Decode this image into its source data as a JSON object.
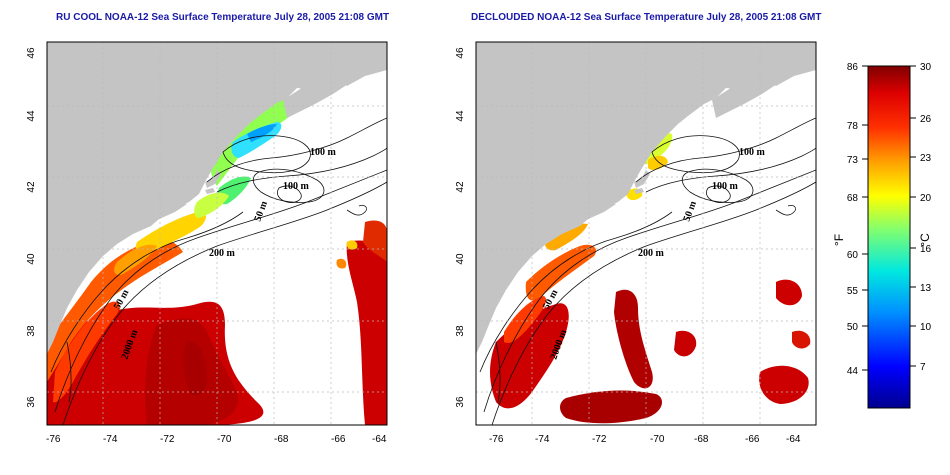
{
  "maps": [
    {
      "title": "RU COOL NOAA-12 Sea Surface Temperature July 28, 2005 21:08 GMT",
      "contour_labels": [
        "100 m",
        "100 m",
        "50 m",
        "200 m",
        "50 m",
        "2000 m"
      ]
    },
    {
      "title": "DECLOUDED NOAA-12 Sea Surface Temperature July 28, 2005 21:08 GMT",
      "contour_labels": [
        "100 m",
        "100 m",
        "50 m",
        "200 m",
        "50 m",
        "2000 m"
      ]
    }
  ],
  "axes": {
    "x_ticks": [
      "-76",
      "-74",
      "-72",
      "-70",
      "-68",
      "-66",
      "-64"
    ],
    "y_ticks": [
      "46",
      "44",
      "42",
      "40",
      "38",
      "36"
    ]
  },
  "colorbar": {
    "fahrenheit_unit": "°F",
    "celsius_unit": "°C",
    "fahrenheit_ticks": [
      "86",
      "78",
      "73",
      "68",
      "60",
      "55",
      "50",
      "44"
    ],
    "celsius_ticks": [
      "30",
      "26",
      "23",
      "20",
      "16",
      "13",
      "10",
      "7"
    ]
  },
  "colors": {
    "land": "#c4c4c4",
    "cloud": "#ffffff",
    "title": "#1a1aa8",
    "gridline": "#bbbbbb"
  }
}
